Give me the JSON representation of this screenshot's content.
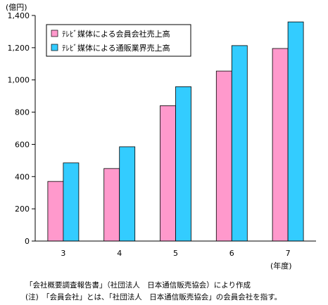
{
  "chart_data": {
    "type": "bar",
    "categories": [
      "3",
      "4",
      "5",
      "6",
      "7"
    ],
    "series": [
      {
        "name": "ﾃﾚﾋﾞ媒体による会員会社売上高",
        "values": [
          370,
          450,
          840,
          1055,
          1195
        ],
        "color": "#FF99CC"
      },
      {
        "name": "ﾃﾚﾋﾞ媒体による通販業界売上高",
        "values": [
          485,
          585,
          958,
          1213,
          1360
        ],
        "color": "#33CCFF"
      }
    ],
    "yunit": "(億円)",
    "xunit": "(年度)",
    "ylim": [
      0,
      1400
    ],
    "yticks": [
      "0",
      "200",
      "400",
      "600",
      "800",
      "1,000",
      "1,200",
      "1,400"
    ],
    "grid": false,
    "legend": "top-left"
  },
  "notes": {
    "source": "「会社概要調査報告書」（社団法人　日本通信販売協会）により作成",
    "note": "(注)　「会員会社」とは、「社団法人　日本通信販売協会」の会員会社を指す。"
  }
}
